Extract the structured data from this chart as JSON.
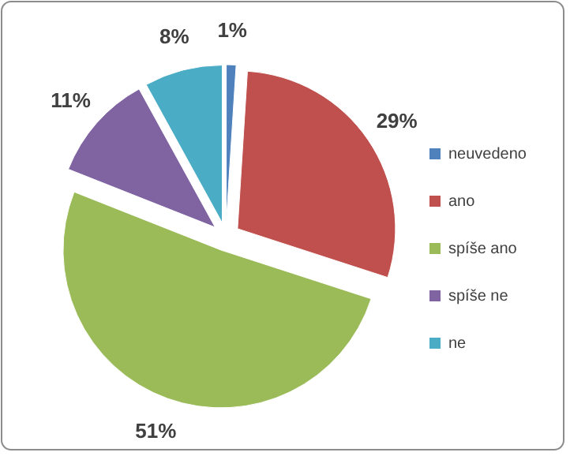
{
  "chart_data": {
    "type": "pie",
    "categories": [
      "neuvedeno",
      "ano",
      "spíše ano",
      "spíše ne",
      "ne"
    ],
    "values": [
      1,
      29,
      51,
      11,
      8
    ],
    "colors": [
      "#4f81bd",
      "#c0504d",
      "#9bbb59",
      "#8064a2",
      "#4bacc6"
    ],
    "value_labels": [
      "1%",
      "29%",
      "51%",
      "11%",
      "8%"
    ],
    "legend": "right"
  }
}
